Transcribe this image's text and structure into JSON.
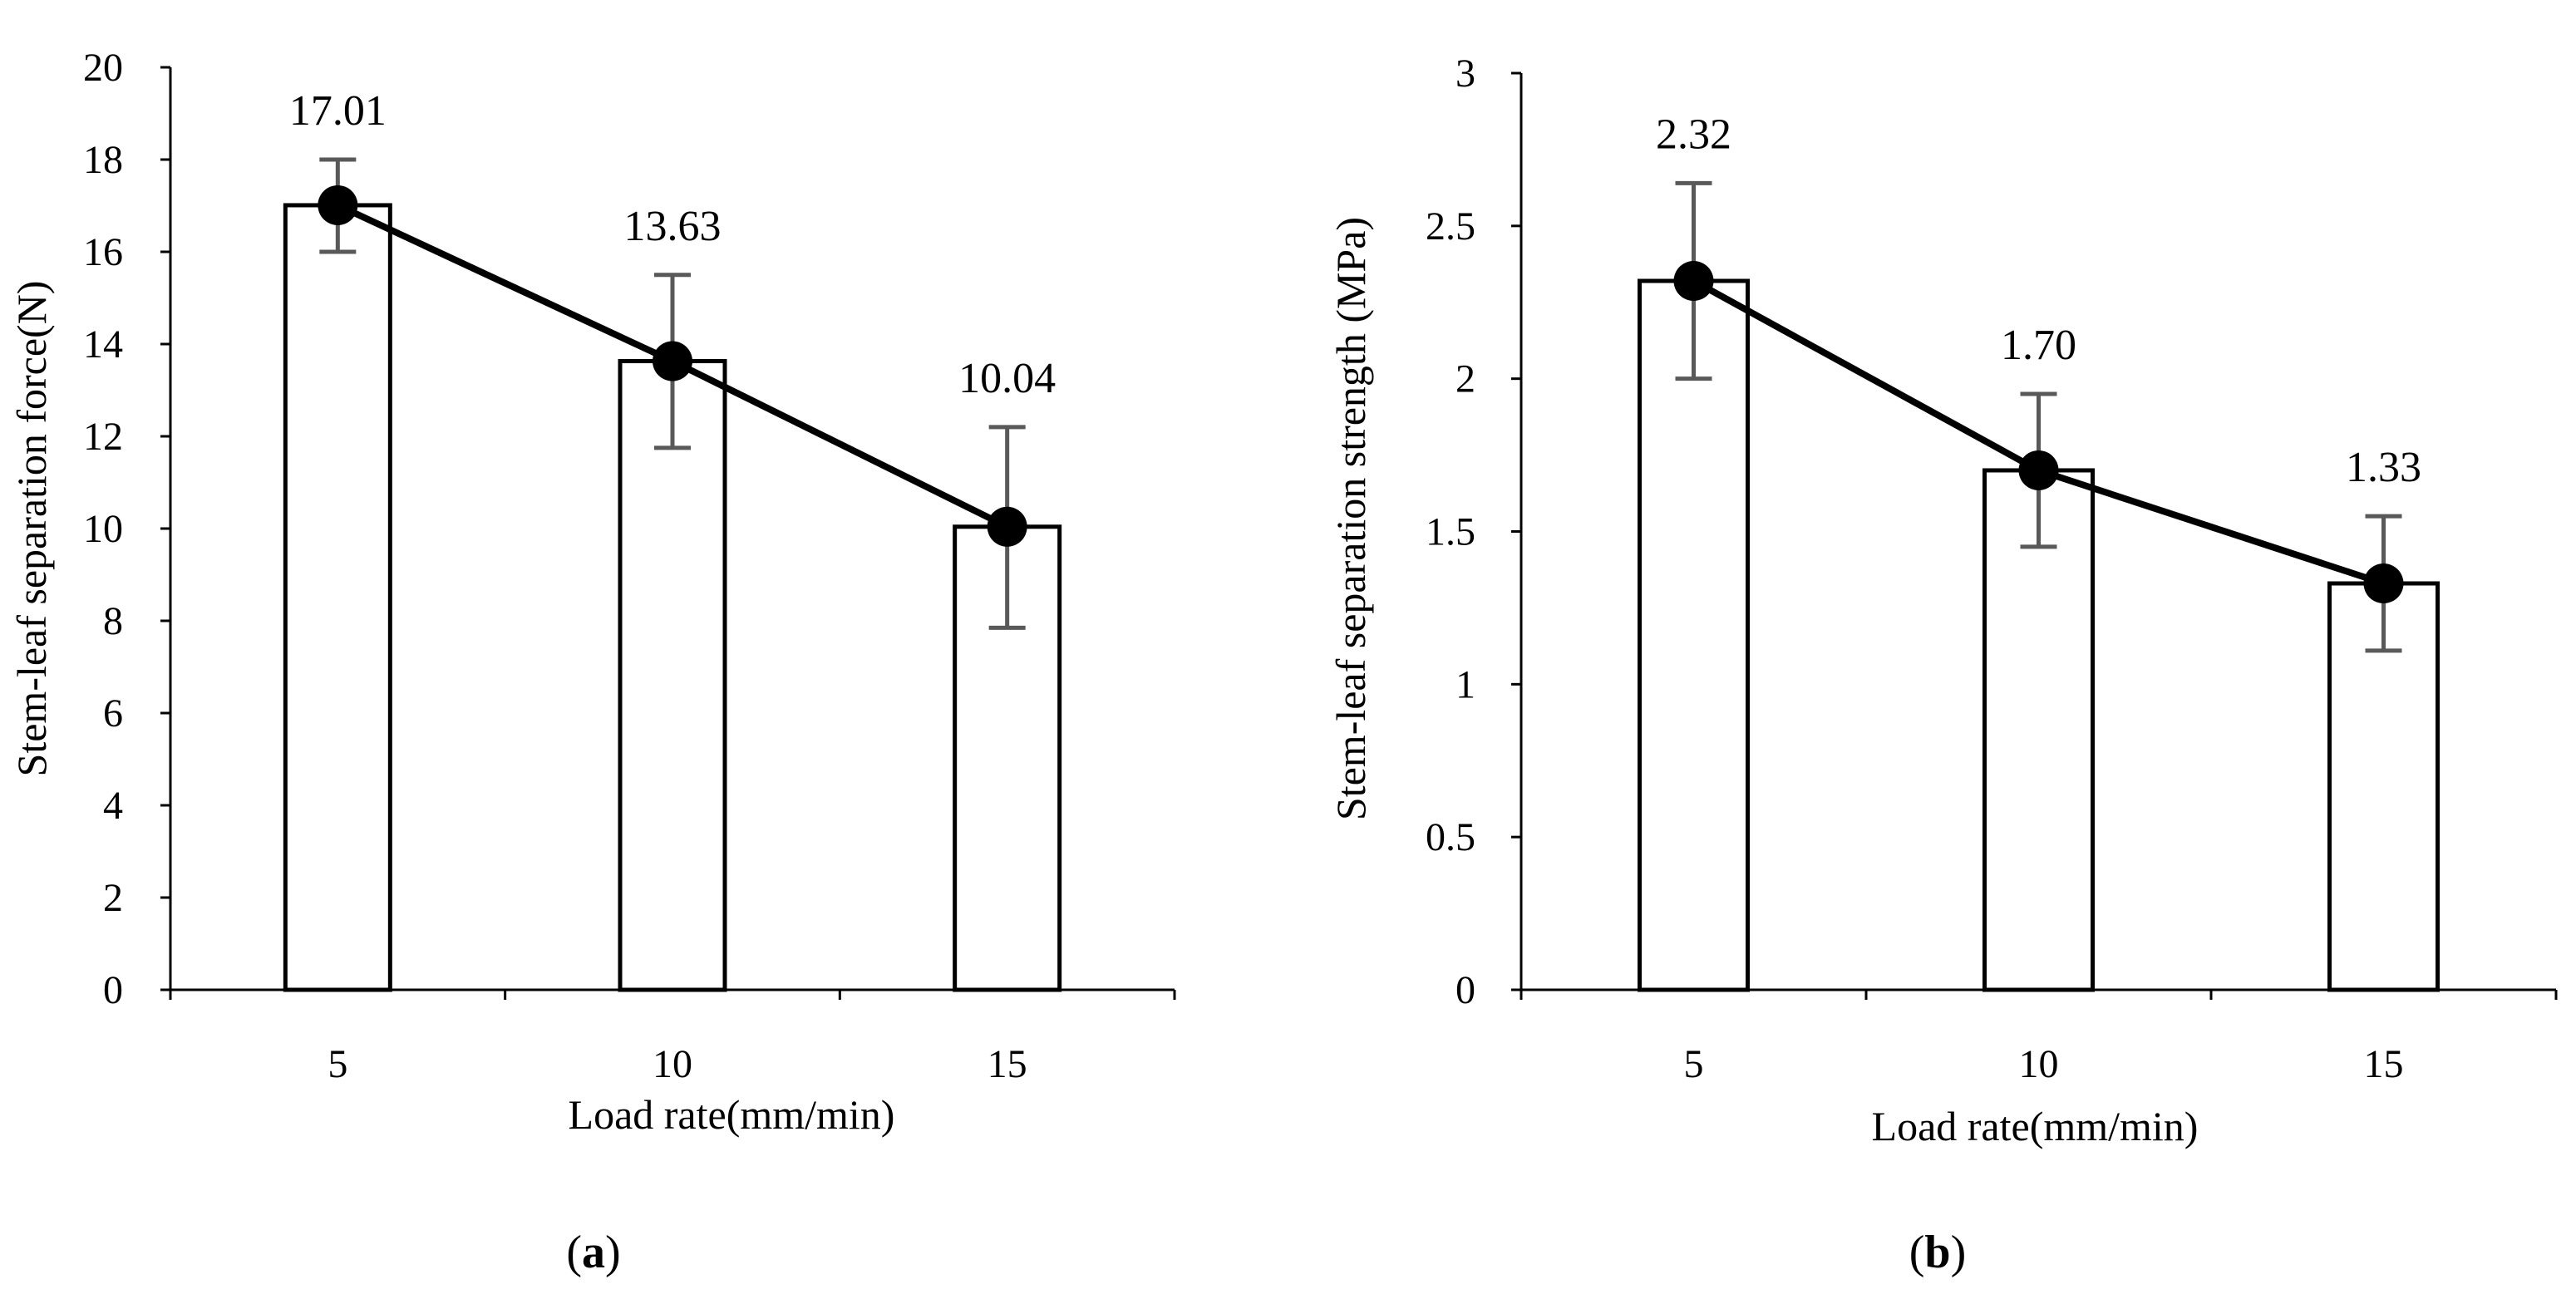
{
  "chart_data": [
    {
      "type": "bar",
      "panel_label": "a",
      "categories": [
        "5",
        "10",
        "15"
      ],
      "values": [
        17.01,
        13.63,
        10.04
      ],
      "data_labels": [
        "17.01",
        "13.63",
        "10.04"
      ],
      "error_low": [
        16.0,
        11.75,
        7.85
      ],
      "error_high": [
        18.0,
        15.5,
        12.2
      ],
      "line_overlay": true,
      "title": "",
      "xlabel": "Load rate(mm/min)",
      "ylabel": "Stem-leaf separation force(N)",
      "ylim": [
        0,
        20
      ],
      "yticks": [
        "0",
        "2",
        "4",
        "6",
        "8",
        "10",
        "12",
        "14",
        "16",
        "18",
        "20"
      ],
      "grid": false,
      "legend": "none"
    },
    {
      "type": "bar",
      "panel_label": "b",
      "categories": [
        "5",
        "10",
        "15"
      ],
      "values": [
        2.32,
        1.7,
        1.33
      ],
      "data_labels": [
        "2.32",
        "1.70",
        "1.33"
      ],
      "error_low": [
        2.0,
        1.45,
        1.11
      ],
      "error_high": [
        2.64,
        1.95,
        1.55
      ],
      "line_overlay": true,
      "title": "",
      "xlabel": "Load rate(mm/min)",
      "ylabel": "Stem-leaf separation strength (MPa)",
      "ylim": [
        0,
        3
      ],
      "yticks": [
        "0",
        "0.5",
        "1",
        "1.5",
        "2",
        "2.5",
        "3"
      ],
      "grid": false,
      "legend": "none"
    }
  ],
  "colors": {
    "bar_fill": "#ffffff",
    "bar_stroke": "#000000",
    "axis": "#000000",
    "line": "#000000",
    "marker": "#000000",
    "error_bar": "#595959"
  }
}
